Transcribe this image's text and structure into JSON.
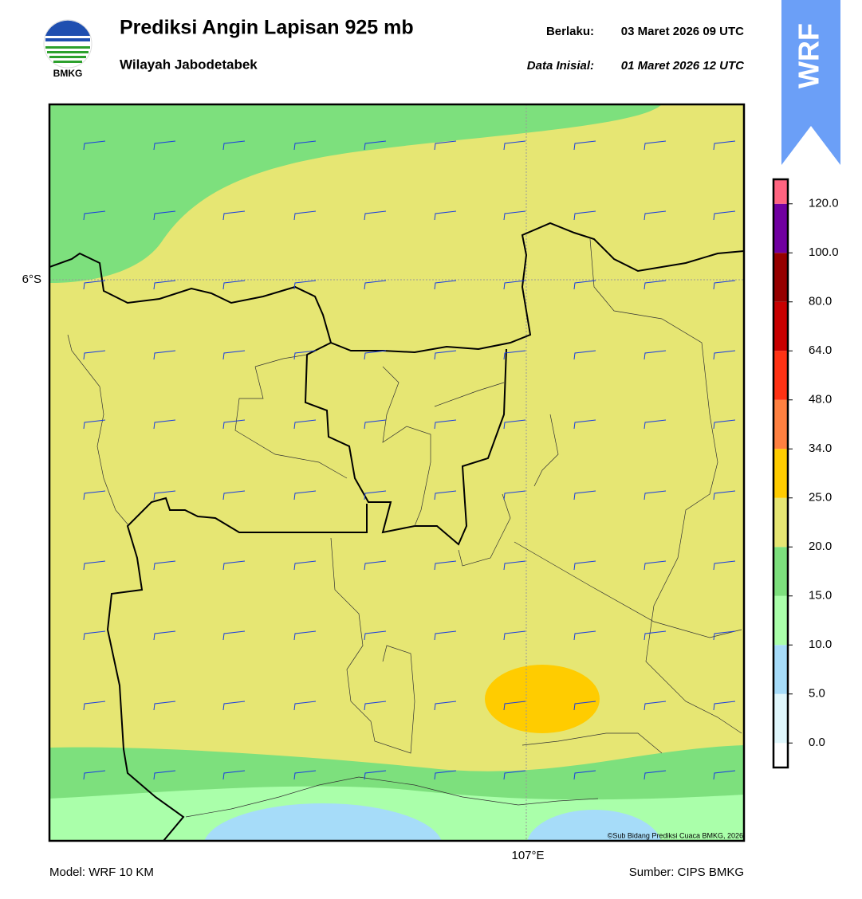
{
  "header": {
    "title": "Prediksi Angin Lapisan 925 mb",
    "subtitle": "Wilayah Jabodetabek",
    "valid_label": "Berlaku:",
    "valid": "03 Maret 2026 09 UTC",
    "init_label": "Data Inisial:",
    "init": "01 Maret 2026 12 UTC",
    "logo": "BMKG",
    "banner": "WRF"
  },
  "map": {
    "lat_label": "6°S",
    "lon_label": "107°E",
    "copyright": "©Sub Bidang Prediksi Cuaca BMKG, 2026"
  },
  "colorbar": {
    "ticks": [
      {
        "value": 0,
        "label": "0.0"
      },
      {
        "value": 5,
        "label": "5.0"
      },
      {
        "value": 10,
        "label": "10.0"
      },
      {
        "value": 15,
        "label": "15.0"
      },
      {
        "value": 20,
        "label": "20.0"
      },
      {
        "value": 25,
        "label": "25.0"
      },
      {
        "value": 34,
        "label": "34.0"
      },
      {
        "value": 48,
        "label": "48.0"
      },
      {
        "value": 64,
        "label": "64.0"
      },
      {
        "value": 80,
        "label": "80.0"
      },
      {
        "value": 100,
        "label": "100.0"
      },
      {
        "value": 120,
        "label": "120.0"
      }
    ],
    "colors": [
      "#ffffff",
      "#e0f7fc",
      "#a6dcf9",
      "#aaffaa",
      "#7de07d",
      "#e6e673",
      "#ffcc00",
      "#ff8040",
      "#ff3214",
      "#c80000",
      "#960000",
      "#7000a0",
      "#ff6480"
    ]
  },
  "footer": {
    "model": "Model: WRF 10 KM",
    "source": "Sumber: CIPS BMKG"
  }
}
